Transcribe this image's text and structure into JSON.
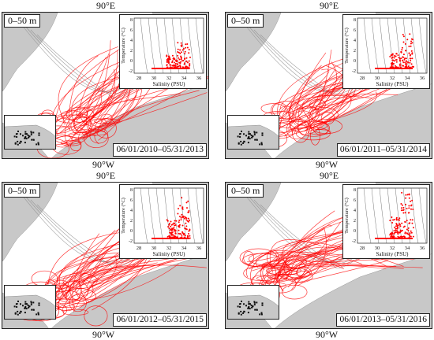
{
  "colors": {
    "trajectory": "#ff0000",
    "land": "#c8c8c8",
    "isobath": "#8c8c8c",
    "ts_points": "#ff0000"
  },
  "panels": [
    {
      "top_label": "90°E",
      "bottom_label": "90°W",
      "depth_label": "0–50 m",
      "date_range": "06/01/2010–05/31/2013",
      "inset": {
        "ylabel": "Temperature (°C)",
        "xlabel": "Salinity (PSU)",
        "x_ticks": [
          "28",
          "30",
          "32",
          "34",
          "36"
        ],
        "y_ticks": [
          "8",
          "6",
          "4",
          "2",
          "0",
          "-2"
        ]
      }
    },
    {
      "top_label": "90°E",
      "bottom_label": "90°W",
      "depth_label": "0–50 m",
      "date_range": "06/01/2011–05/31/2014",
      "inset": {
        "ylabel": "Temperature (°C)",
        "xlabel": "Salinity (PSU)",
        "x_ticks": [
          "28",
          "30",
          "32",
          "34",
          "36"
        ],
        "y_ticks": [
          "8",
          "6",
          "4",
          "2",
          "0",
          "-2"
        ]
      }
    },
    {
      "top_label": "90°E",
      "bottom_label": "90°W",
      "depth_label": "0–50 m",
      "date_range": "06/01/2012–05/31/2015",
      "inset": {
        "ylabel": "Temperature (°C)",
        "xlabel": "Salinity (PSU)",
        "x_ticks": [
          "28",
          "30",
          "32",
          "34",
          "36"
        ],
        "y_ticks": [
          "8",
          "6",
          "4",
          "2",
          "0",
          "-2"
        ]
      }
    },
    {
      "top_label": "90°E",
      "bottom_label": "90°W",
      "depth_label": "0–50 m",
      "date_range": "06/01/2013–05/31/2016",
      "inset": {
        "ylabel": "Temperature (°C)",
        "xlabel": "Salinity (PSU)",
        "x_ticks": [
          "28",
          "30",
          "32",
          "34",
          "36"
        ],
        "y_ticks": [
          "8",
          "6",
          "4",
          "2",
          "0",
          "-2"
        ]
      }
    }
  ]
}
